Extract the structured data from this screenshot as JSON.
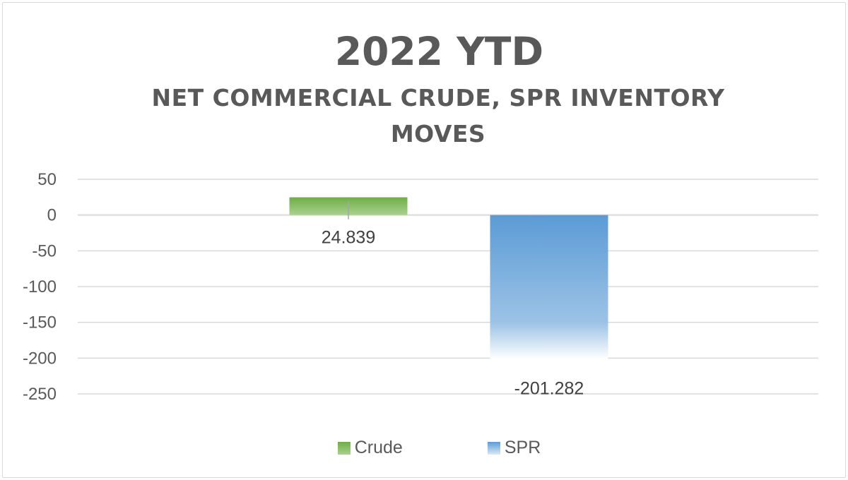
{
  "colors": {
    "crude": "#70ad47",
    "spr": "#5b9bd5",
    "grid": "#d9d9d9",
    "text": "#595959"
  },
  "chart_data": {
    "type": "bar",
    "title": "2022 YTD",
    "subtitle": "NET COMMERCIAL CRUDE, SPR INVENTORY MOVES",
    "categories": [
      "Crude",
      "SPR"
    ],
    "values": [
      24.839,
      -201.282
    ],
    "data_labels": [
      "24.839",
      "-201.282"
    ],
    "ylim": [
      -250,
      50
    ],
    "yticks": [
      50,
      0,
      -50,
      -100,
      -150,
      -200,
      -250
    ],
    "grid": true,
    "legend_position": "bottom",
    "legend": [
      "Crude",
      "SPR"
    ],
    "xlabel": "",
    "ylabel": ""
  }
}
